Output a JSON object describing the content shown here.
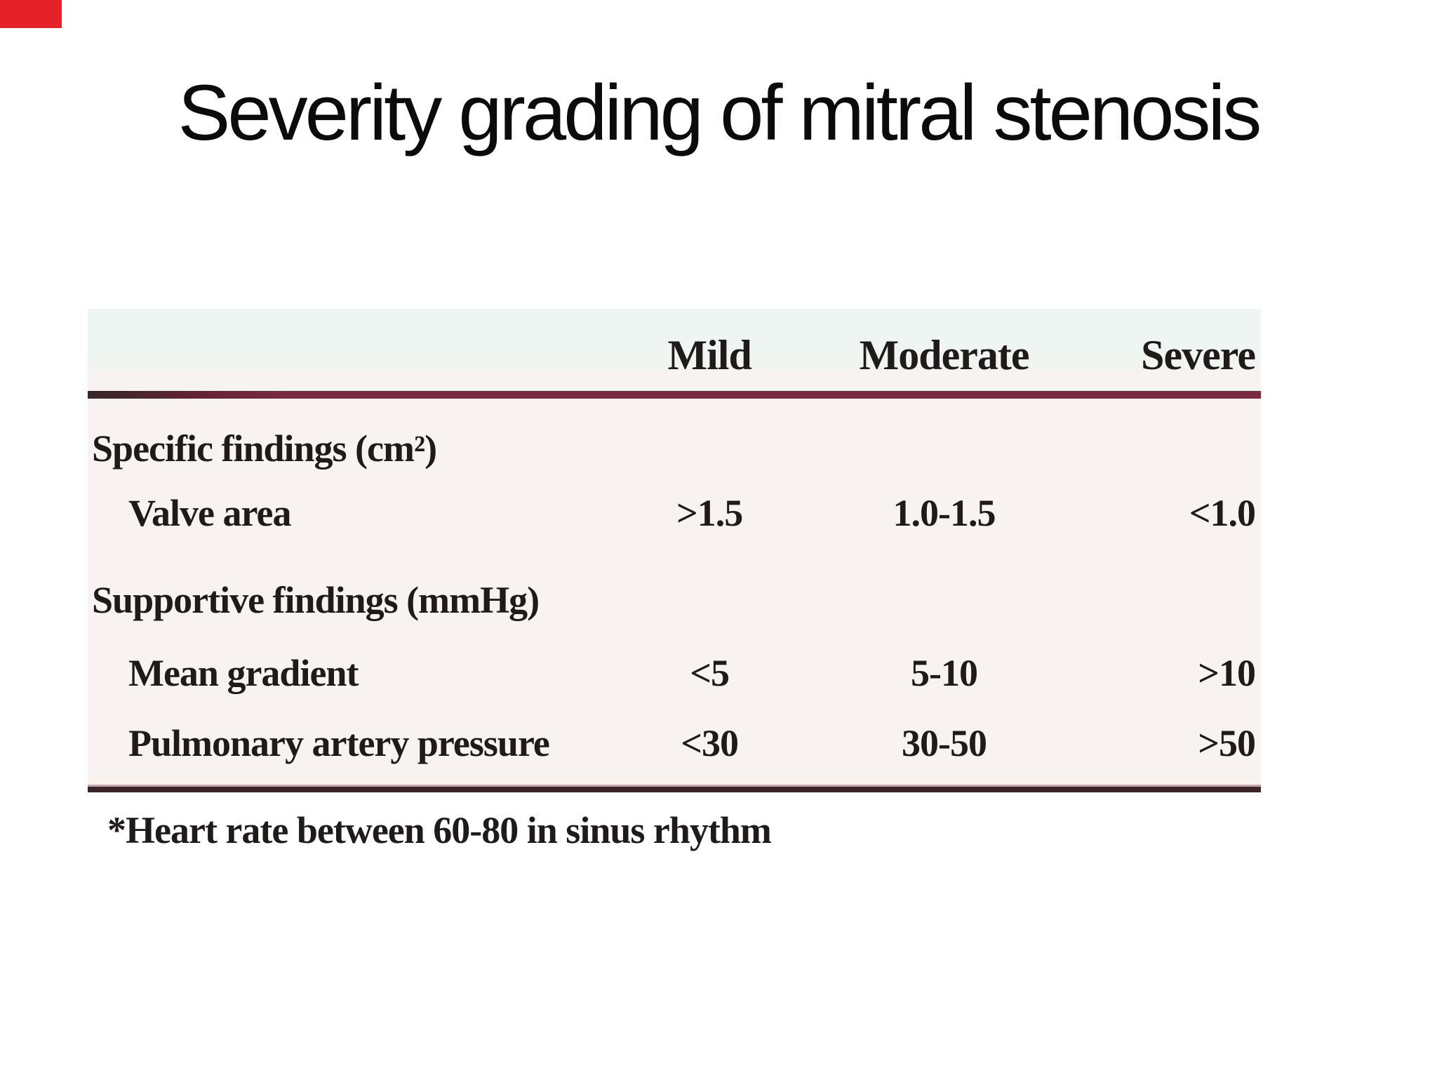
{
  "colors": {
    "corner-mark": "#e62129",
    "title-text": "#0b0b0b",
    "table-text": "#201b1b",
    "rule-bottom": "#3a2329",
    "table-bg": "#f8f2f1",
    "table-bg-top": "#eff5f2"
  },
  "slide": {
    "title": "Severity grading of mitral stenosis"
  },
  "table": {
    "columns": [
      "Mild",
      "Moderate",
      "Severe"
    ],
    "rows": [
      {
        "label": "Specific findings (cm²)",
        "values": [
          "",
          "",
          ""
        ]
      },
      {
        "label": "Valve area",
        "values": [
          ">1.5",
          "1.0-1.5",
          "<1.0"
        ]
      },
      {
        "label": "Supportive findings (mmHg)",
        "values": [
          "",
          "",
          ""
        ]
      },
      {
        "label": "Mean gradient",
        "values": [
          "<5",
          "5-10",
          ">10"
        ]
      },
      {
        "label": "Pulmonary artery pressure",
        "values": [
          "<30",
          "30-50",
          ">50"
        ]
      }
    ],
    "footnote": "*Heart rate between 60-80 in sinus rhythm"
  }
}
